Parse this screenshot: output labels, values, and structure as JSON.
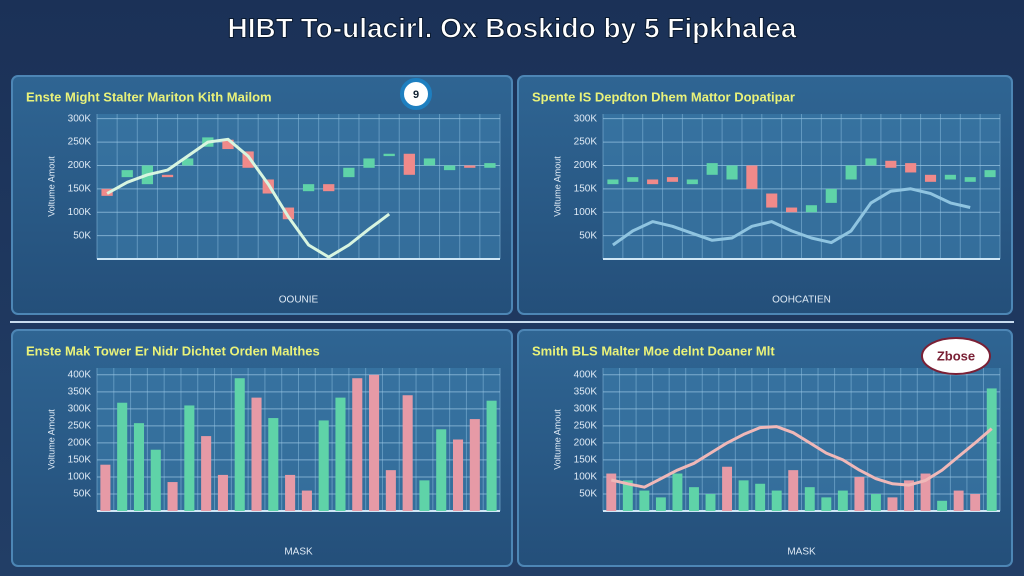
{
  "page_title": "HIBT To-ulacirl. Ox Boskido by 5 Fipkhalea",
  "chart_data": [
    {
      "type": "candlestick",
      "title": "Enste Might Stalter Mariton Kith Mailom",
      "xlabel": "OOUNIE",
      "ylabel": "Voltume Amout",
      "annotation": "9",
      "categories": [
        null,
        null,
        null,
        null,
        null,
        null,
        null,
        null,
        null,
        null,
        null,
        null,
        null,
        null,
        null,
        null,
        null,
        null,
        null,
        null
      ],
      "open": [
        150,
        175,
        160,
        180,
        200,
        240,
        255,
        230,
        170,
        110,
        145,
        160,
        175,
        195,
        220,
        225,
        200,
        190,
        200,
        195
      ],
      "close": [
        135,
        190,
        200,
        175,
        215,
        260,
        235,
        195,
        140,
        85,
        160,
        145,
        195,
        215,
        225,
        180,
        215,
        200,
        195,
        205
      ],
      "line": [
        140,
        164,
        180,
        190,
        220,
        250,
        256,
        220,
        160,
        90,
        30,
        4,
        30,
        64,
        96,
        null,
        null,
        null,
        null,
        null
      ],
      "up_color": "#5fd3a8",
      "down_color": "#f08a8a",
      "line_color": "#d8f5e0",
      "ylim": [
        0,
        310
      ],
      "yticks": [
        {
          "value": 50,
          "label": "50K"
        },
        {
          "value": 100,
          "label": "100K"
        },
        {
          "value": 150,
          "label": "150K"
        },
        {
          "value": 200,
          "label": "200K"
        },
        {
          "value": 250,
          "label": "250K"
        },
        {
          "value": 300,
          "label": "300K"
        }
      ],
      "grid": true
    },
    {
      "type": "candlestick",
      "title": "Spente IS Depdton Dhem Mattor Dopatipar",
      "xlabel": "OOHCATIEN",
      "ylabel": "Voltume Amout",
      "categories": [
        null,
        null,
        null,
        null,
        null,
        null,
        null,
        null,
        null,
        null,
        null,
        null,
        null,
        null,
        null,
        null,
        null,
        null,
        null,
        null
      ],
      "open": [
        160,
        165,
        170,
        175,
        160,
        180,
        170,
        200,
        140,
        110,
        100,
        120,
        170,
        200,
        210,
        205,
        180,
        170,
        165,
        175
      ],
      "close": [
        170,
        175,
        160,
        165,
        170,
        205,
        200,
        150,
        110,
        100,
        115,
        150,
        200,
        215,
        195,
        185,
        165,
        180,
        175,
        190
      ],
      "line": [
        30,
        60,
        80,
        70,
        55,
        40,
        45,
        70,
        80,
        60,
        45,
        35,
        60,
        120,
        145,
        150,
        140,
        120,
        110,
        null
      ],
      "up_color": "#5fd3a8",
      "down_color": "#f08a8a",
      "line_color": "#8fc4e0",
      "ylim": [
        0,
        310
      ],
      "yticks": [
        {
          "value": 50,
          "label": "50K"
        },
        {
          "value": 100,
          "label": "100K"
        },
        {
          "value": 150,
          "label": "150K"
        },
        {
          "value": 200,
          "label": "200K"
        },
        {
          "value": 250,
          "label": "250K"
        },
        {
          "value": 300,
          "label": "300K"
        }
      ],
      "grid": true
    },
    {
      "type": "bar",
      "title": "Enste Mak Tower Er Nidr Dichtet Orden Malthes",
      "xlabel": "MASK",
      "ylabel": "Voltume Amout",
      "categories": [
        null,
        null,
        null,
        null,
        null,
        null,
        null,
        null,
        null,
        null,
        null,
        null,
        null,
        null,
        null,
        null,
        null,
        null,
        null,
        null,
        null,
        null,
        null,
        null
      ],
      "values": [
        136,
        318,
        258,
        180,
        85,
        310,
        220,
        106,
        390,
        333,
        273,
        106,
        60,
        266,
        333,
        390,
        400,
        120,
        340,
        90,
        240,
        210,
        270,
        324
      ],
      "colors": [
        "#e69aa6",
        "#5fd3a8",
        "#5fd3a8",
        "#5fd3a8",
        "#e69aa6",
        "#5fd3a8",
        "#e69aa6",
        "#e69aa6",
        "#5fd3a8",
        "#e69aa6",
        "#5fd3a8",
        "#e69aa6",
        "#e69aa6",
        "#5fd3a8",
        "#5fd3a8",
        "#e69aa6",
        "#e69aa6",
        "#e69aa6",
        "#e69aa6",
        "#5fd3a8",
        "#5fd3a8",
        "#e69aa6",
        "#e69aa6",
        "#5fd3a8"
      ],
      "ylim": [
        0,
        420
      ],
      "yticks": [
        {
          "value": 50,
          "label": "50K"
        },
        {
          "value": 100,
          "label": "100K"
        },
        {
          "value": 150,
          "label": "150K"
        },
        {
          "value": 200,
          "label": "200K"
        },
        {
          "value": 250,
          "label": "250K"
        },
        {
          "value": 300,
          "label": "300K"
        },
        {
          "value": 350,
          "label": "350K"
        },
        {
          "value": 400,
          "label": "400K"
        }
      ],
      "grid": true
    },
    {
      "type": "bar",
      "title": "Smith BLS Malter Moe delnt Doaner Mlt",
      "xlabel": "MASK",
      "ylabel": "Voltume Amout",
      "annotation": "Zbose",
      "categories": [
        null,
        null,
        null,
        null,
        null,
        null,
        null,
        null,
        null,
        null,
        null,
        null,
        null,
        null,
        null,
        null,
        null,
        null,
        null,
        null,
        null,
        null,
        null,
        null
      ],
      "values": [
        110,
        90,
        60,
        40,
        110,
        70,
        50,
        130,
        90,
        80,
        60,
        120,
        70,
        40,
        60,
        100,
        50,
        40,
        90,
        110,
        30,
        60,
        50,
        360
      ],
      "colors": [
        "#e69aa6",
        "#5fd3a8",
        "#5fd3a8",
        "#5fd3a8",
        "#5fd3a8",
        "#5fd3a8",
        "#5fd3a8",
        "#e69aa6",
        "#5fd3a8",
        "#5fd3a8",
        "#5fd3a8",
        "#e69aa6",
        "#5fd3a8",
        "#5fd3a8",
        "#5fd3a8",
        "#e69aa6",
        "#5fd3a8",
        "#e69aa6",
        "#e69aa6",
        "#e69aa6",
        "#5fd3a8",
        "#e69aa6",
        "#e69aa6",
        "#5fd3a8"
      ],
      "line": [
        91,
        80,
        70,
        95,
        120,
        140,
        170,
        200,
        225,
        245,
        248,
        230,
        200,
        170,
        150,
        120,
        95,
        80,
        76,
        90,
        120,
        160,
        200,
        242
      ],
      "line_color": "#f0b8b8",
      "ylim": [
        0,
        420
      ],
      "yticks": [
        {
          "value": 50,
          "label": "50K"
        },
        {
          "value": 100,
          "label": "100K"
        },
        {
          "value": 150,
          "label": "150K"
        },
        {
          "value": 200,
          "label": "200K"
        },
        {
          "value": 250,
          "label": "250K"
        },
        {
          "value": 300,
          "label": "300K"
        },
        {
          "value": 350,
          "label": "350K"
        },
        {
          "value": 400,
          "label": "400K"
        }
      ],
      "grid": true
    }
  ]
}
